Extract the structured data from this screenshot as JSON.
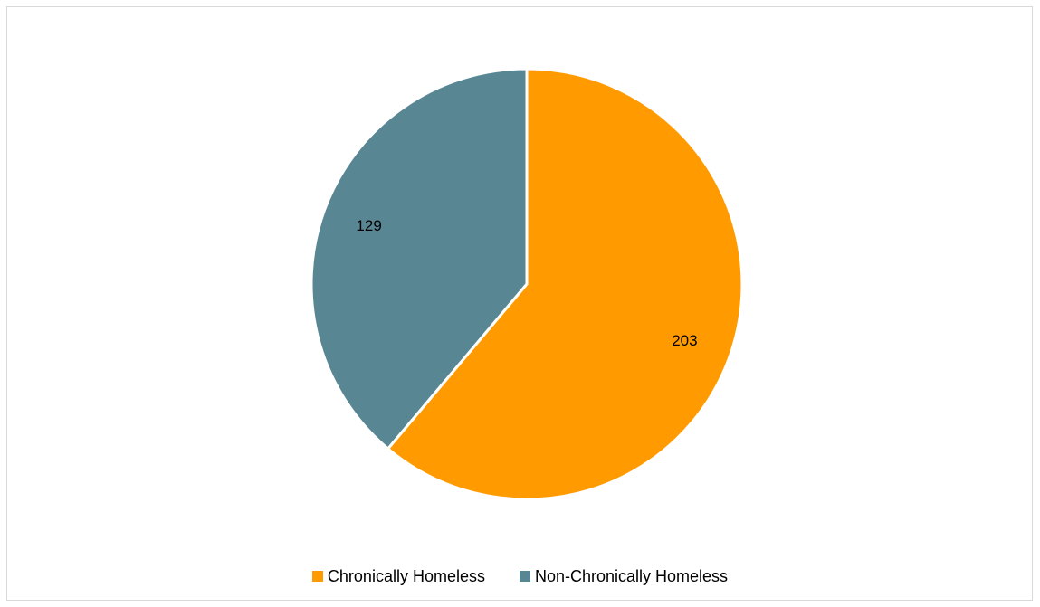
{
  "chart_data": {
    "type": "pie",
    "title": "",
    "slices": [
      {
        "name": "Chronically Homeless",
        "value": 203,
        "color": "#ff9b00"
      },
      {
        "name": "Non-Chronically Homeless",
        "value": 129,
        "color": "#588793"
      }
    ],
    "legend_position": "bottom",
    "start_angle_deg": 0,
    "direction": "clockwise"
  }
}
